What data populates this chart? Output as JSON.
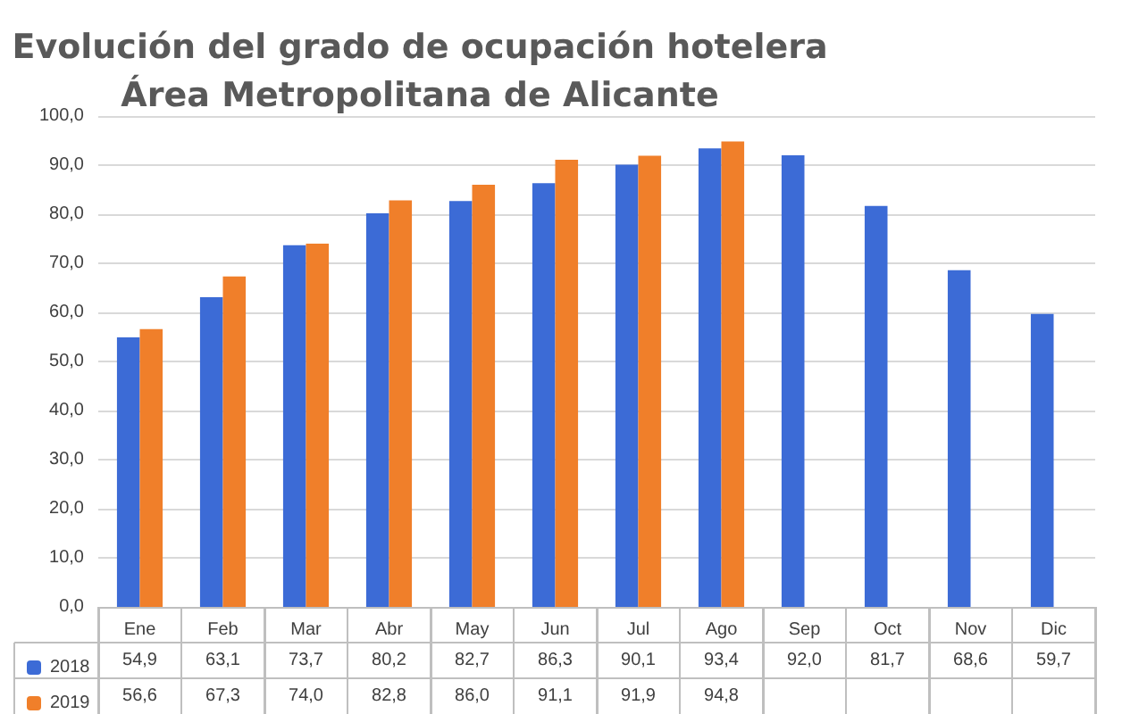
{
  "chart_data": {
    "type": "bar",
    "title": "Evolución del grado de ocupación hotelera\nÁrea Metropolitana de Alicante",
    "categories": [
      "Ene",
      "Feb",
      "Mar",
      "Abr",
      "May",
      "Jun",
      "Jul",
      "Ago",
      "Sep",
      "Oct",
      "Nov",
      "Dic"
    ],
    "series": [
      {
        "name": "2018",
        "color": "#3c6bd6",
        "values": [
          54.9,
          63.1,
          73.7,
          80.2,
          82.7,
          86.3,
          90.1,
          93.4,
          92.0,
          81.7,
          68.6,
          59.7
        ],
        "value_labels": [
          "54,9",
          "63,1",
          "73,7",
          "80,2",
          "82,7",
          "86,3",
          "90,1",
          "93,4",
          "92,0",
          "81,7",
          "68,6",
          "59,7"
        ]
      },
      {
        "name": "2019",
        "color": "#f07f2a",
        "values": [
          56.6,
          67.3,
          74.0,
          82.8,
          86.0,
          91.1,
          91.9,
          94.8,
          null,
          null,
          null,
          null
        ],
        "value_labels": [
          "56,6",
          "67,3",
          "74,0",
          "82,8",
          "86,0",
          "91,1",
          "91,9",
          "94,8",
          null,
          null,
          null,
          null
        ]
      }
    ],
    "ylim": [
      0,
      100
    ],
    "yticks": [
      {
        "value": 0,
        "label": "0,0"
      },
      {
        "value": 10,
        "label": "10,0"
      },
      {
        "value": 20,
        "label": "20,0"
      },
      {
        "value": 30,
        "label": "30,0"
      },
      {
        "value": 40,
        "label": "40,0"
      },
      {
        "value": 50,
        "label": "50,0"
      },
      {
        "value": 60,
        "label": "60,0"
      },
      {
        "value": 70,
        "label": "70,0"
      },
      {
        "value": 80,
        "label": "80,0"
      },
      {
        "value": 90,
        "label": "90,0"
      },
      {
        "value": 100,
        "label": "100,0"
      }
    ],
    "grid": "y",
    "legend": "bottom"
  }
}
